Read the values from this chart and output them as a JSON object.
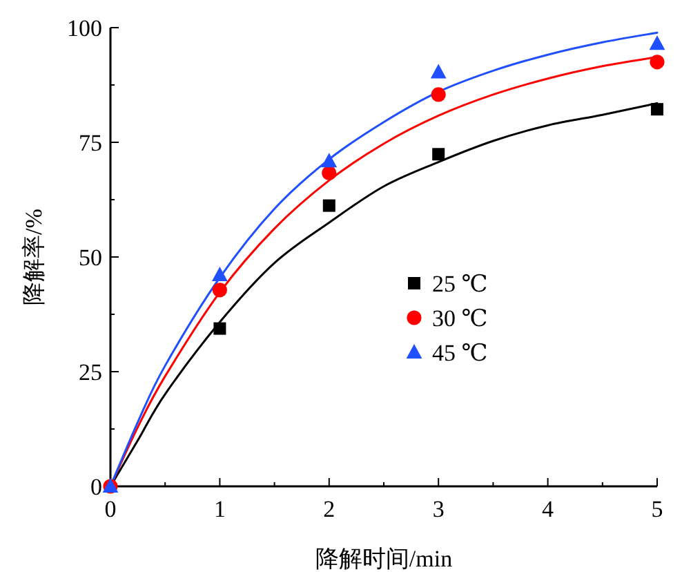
{
  "chart_data": {
    "type": "scatter",
    "xlabel": "降解时间/min",
    "ylabel": "降解率/%",
    "xlim": [
      0,
      5
    ],
    "ylim": [
      0,
      100
    ],
    "xticks": [
      0,
      1,
      2,
      3,
      4,
      5
    ],
    "yticks": [
      0,
      25,
      50,
      75,
      100
    ],
    "grid": false,
    "legend": "center",
    "series": [
      {
        "name": "25 ℃",
        "marker": "square",
        "color": "#000000",
        "x": [
          1,
          2,
          3,
          5
        ],
        "values": [
          34.4,
          61.2,
          72.4,
          82.2
        ]
      },
      {
        "name": "30 ℃",
        "marker": "circle",
        "color": "#ff0000",
        "x": [
          0,
          1,
          2,
          3,
          5
        ],
        "values": [
          0,
          42.8,
          68.3,
          85.4,
          92.5
        ]
      },
      {
        "name": "45 ℃",
        "marker": "triangle",
        "color": "#1f4fff",
        "x": [
          0,
          1,
          2,
          3,
          5
        ],
        "values": [
          0,
          46.1,
          70.9,
          90.3,
          96.5
        ]
      },
      {
        "type": "line",
        "marker": "none",
        "line_style": "solid",
        "color": "#000000",
        "x": [
          0,
          0.25,
          0.5,
          1,
          1.5,
          2,
          2.5,
          3,
          3.5,
          4,
          4.5,
          5
        ],
        "values": [
          0,
          10.0,
          20.1,
          35.8,
          48.7,
          57.5,
          65.4,
          70.7,
          75.3,
          78.7,
          81.0,
          83.5
        ]
      },
      {
        "type": "line",
        "marker": "none",
        "line_style": "solid",
        "color": "#ff0000",
        "x": [
          0,
          0.25,
          0.5,
          1,
          1.5,
          2,
          2.5,
          3,
          3.5,
          4,
          4.5,
          5
        ],
        "values": [
          0,
          12.9,
          24.0,
          42.3,
          56.2,
          66.7,
          74.7,
          80.8,
          85.4,
          88.9,
          91.6,
          93.6
        ]
      },
      {
        "type": "line",
        "marker": "none",
        "line_style": "solid",
        "color": "#1f4fff",
        "x": [
          0,
          0.25,
          0.5,
          1,
          1.5,
          2,
          2.5,
          3,
          3.5,
          4,
          4.5,
          5
        ],
        "values": [
          0,
          14.0,
          26.3,
          45.5,
          60.5,
          71.3,
          79.4,
          86.0,
          90.6,
          94.1,
          96.8,
          98.9
        ]
      }
    ]
  }
}
